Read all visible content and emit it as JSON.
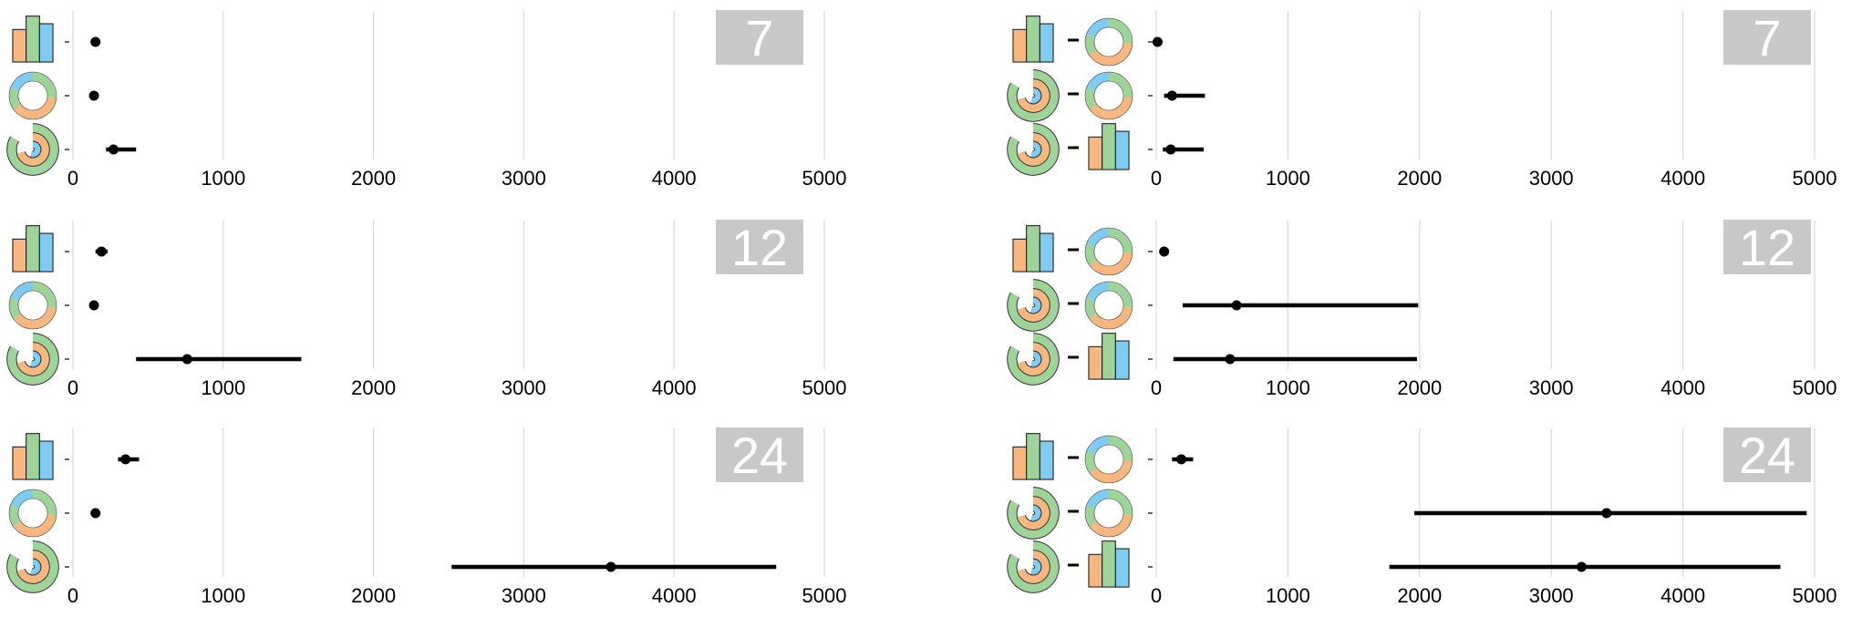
{
  "colors": {
    "orange": "#f8b77f",
    "green": "#9ed49a",
    "blue": "#7fcbf2",
    "grid": "#d9d9d9",
    "badge_bg": "#c8c8c8",
    "badge_text": "#ffffff",
    "mark": "#000000"
  },
  "chart_data": [
    {
      "type": "scatter",
      "variant": "dot-with-error-bar",
      "column": "left",
      "badge": "7",
      "xlim": [
        0,
        5000
      ],
      "ticks": [
        "0",
        "1000",
        "2000",
        "3000",
        "4000",
        "5000"
      ],
      "grid": true,
      "rows": [
        {
          "icon": "bar-chart-icon",
          "mean": 150,
          "low": 130,
          "high": 170
        },
        {
          "icon": "donut-chart-icon",
          "mean": 140,
          "low": 125,
          "high": 155
        },
        {
          "icon": "radial-bar-icon",
          "mean": 270,
          "low": 220,
          "high": 420
        }
      ]
    },
    {
      "type": "scatter",
      "variant": "dot-with-error-bar",
      "column": "left",
      "badge": "12",
      "xlim": [
        0,
        5000
      ],
      "ticks": [
        "0",
        "1000",
        "2000",
        "3000",
        "4000",
        "5000"
      ],
      "grid": true,
      "rows": [
        {
          "icon": "bar-chart-icon",
          "mean": 190,
          "low": 150,
          "high": 230
        },
        {
          "icon": "donut-chart-icon",
          "mean": 140,
          "low": 125,
          "high": 155
        },
        {
          "icon": "radial-bar-icon",
          "mean": 760,
          "low": 420,
          "high": 1520
        }
      ]
    },
    {
      "type": "scatter",
      "variant": "dot-with-error-bar",
      "column": "left",
      "badge": "24",
      "xlim": [
        0,
        5000
      ],
      "ticks": [
        "0",
        "1000",
        "2000",
        "3000",
        "4000",
        "5000"
      ],
      "grid": true,
      "rows": [
        {
          "icon": "bar-chart-icon",
          "mean": 350,
          "low": 300,
          "high": 440
        },
        {
          "icon": "donut-chart-icon",
          "mean": 150,
          "low": 135,
          "high": 165
        },
        {
          "icon": "radial-bar-icon",
          "mean": 3580,
          "low": 2520,
          "high": 4680
        }
      ]
    },
    {
      "type": "scatter",
      "variant": "dot-with-error-bar",
      "column": "right",
      "badge": "7",
      "xlim": [
        0,
        5000
      ],
      "ticks": [
        "0",
        "1000",
        "2000",
        "3000",
        "4000",
        "5000"
      ],
      "grid": true,
      "rows": [
        {
          "icon_left": "bar-chart-icon",
          "icon_right": "donut-chart-icon",
          "mean": 10,
          "low": 0,
          "high": 20
        },
        {
          "icon_left": "radial-bar-icon",
          "icon_right": "donut-chart-icon",
          "mean": 120,
          "low": 60,
          "high": 370
        },
        {
          "icon_left": "radial-bar-icon",
          "icon_right": "bar-chart-icon",
          "mean": 110,
          "low": 50,
          "high": 360
        }
      ]
    },
    {
      "type": "scatter",
      "variant": "dot-with-error-bar",
      "column": "right",
      "badge": "12",
      "xlim": [
        0,
        5000
      ],
      "ticks": [
        "0",
        "1000",
        "2000",
        "3000",
        "4000",
        "5000"
      ],
      "grid": true,
      "rows": [
        {
          "icon_left": "bar-chart-icon",
          "icon_right": "donut-chart-icon",
          "mean": 60,
          "low": 30,
          "high": 90
        },
        {
          "icon_left": "radial-bar-icon",
          "icon_right": "donut-chart-icon",
          "mean": 610,
          "low": 200,
          "high": 1990
        },
        {
          "icon_left": "radial-bar-icon",
          "icon_right": "bar-chart-icon",
          "mean": 560,
          "low": 130,
          "high": 1980
        }
      ]
    },
    {
      "type": "scatter",
      "variant": "dot-with-error-bar",
      "column": "right",
      "badge": "24",
      "xlim": [
        0,
        5000
      ],
      "ticks": [
        "0",
        "1000",
        "2000",
        "3000",
        "4000",
        "5000"
      ],
      "grid": true,
      "rows": [
        {
          "icon_left": "bar-chart-icon",
          "icon_right": "donut-chart-icon",
          "mean": 190,
          "low": 120,
          "high": 280
        },
        {
          "icon_left": "radial-bar-icon",
          "icon_right": "donut-chart-icon",
          "mean": 3420,
          "low": 1960,
          "high": 4940
        },
        {
          "icon_left": "radial-bar-icon",
          "icon_right": "bar-chart-icon",
          "mean": 3230,
          "low": 1770,
          "high": 4740
        }
      ]
    }
  ]
}
